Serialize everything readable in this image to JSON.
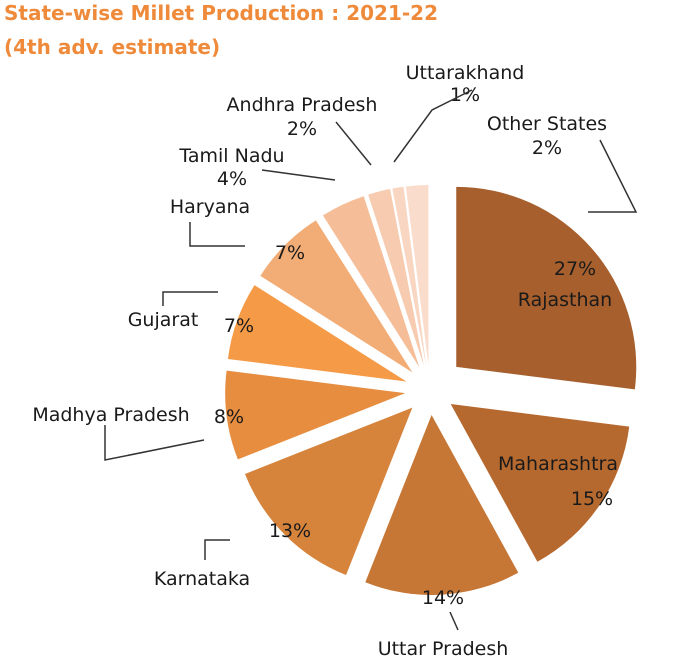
{
  "title": "State-wise Millet Production : 2021-22",
  "subtitle": "(4th adv. estimate)",
  "chart_data": {
    "type": "pie",
    "title": "State-wise Millet Production : 2021-22",
    "subtitle": "(4th adv. estimate)",
    "unit": "%",
    "slices": [
      {
        "label": "Rajasthan",
        "value": 27,
        "value_text": "27%",
        "color": "#A65F2D"
      },
      {
        "label": "Maharashtra",
        "value": 15,
        "value_text": "15%",
        "color": "#B6692F"
      },
      {
        "label": "Uttar Pradesh",
        "value": 14,
        "value_text": "14%",
        "color": "#C67635"
      },
      {
        "label": "Karnataka",
        "value": 13,
        "value_text": "13%",
        "color": "#D6833C"
      },
      {
        "label": "Madhya Pradesh",
        "value": 8,
        "value_text": "8%",
        "color": "#E68D3F"
      },
      {
        "label": "Gujarat",
        "value": 7,
        "value_text": "7%",
        "color": "#F59B48"
      },
      {
        "label": "Haryana",
        "value": 7,
        "value_text": "7%",
        "color": "#F2AC75"
      },
      {
        "label": "Tamil Nadu",
        "value": 4,
        "value_text": "4%",
        "color": "#F5BE98"
      },
      {
        "label": "Andhra Pradesh",
        "value": 2,
        "value_text": "2%",
        "color": "#F6CBAF"
      },
      {
        "label": "Uttarakhand",
        "value": 1,
        "value_text": "1%",
        "color": "#F8D6C2"
      },
      {
        "label": "Other States",
        "value": 2,
        "value_text": "2%",
        "color": "#F9DCCB"
      }
    ]
  }
}
